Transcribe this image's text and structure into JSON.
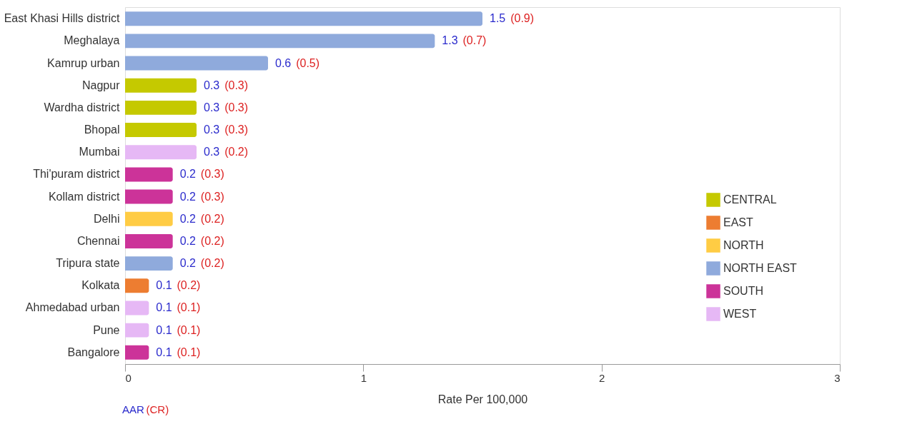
{
  "chart_data": {
    "type": "bar",
    "orientation": "horizontal",
    "categories": [
      "East Khasi Hills district",
      "Meghalaya",
      "Kamrup urban",
      "Nagpur",
      "Wardha district",
      "Bhopal",
      "Mumbai",
      "Thi'puram district",
      "Kollam district",
      "Delhi",
      "Chennai",
      "Tripura state",
      "Kolkata",
      "Ahmedabad urban",
      "Pune",
      "Bangalore"
    ],
    "series": [
      {
        "name": "CENTRAL",
        "color": "#c5c900",
        "values": [
          null,
          null,
          null,
          0.3,
          0.3,
          0.3,
          null,
          null,
          null,
          null,
          null,
          null,
          null,
          null,
          null,
          null
        ]
      },
      {
        "name": "EAST",
        "color": "#ed7d31",
        "values": [
          null,
          null,
          null,
          null,
          null,
          null,
          null,
          null,
          null,
          null,
          null,
          null,
          0.1,
          null,
          null,
          null
        ]
      },
      {
        "name": "NORTH",
        "color": "#ffcc44",
        "values": [
          null,
          null,
          null,
          null,
          null,
          null,
          null,
          null,
          null,
          0.2,
          null,
          null,
          null,
          null,
          null,
          null
        ]
      },
      {
        "name": "NORTH EAST",
        "color": "#8faadc",
        "values": [
          1.5,
          1.3,
          0.6,
          null,
          null,
          null,
          null,
          null,
          null,
          null,
          null,
          0.2,
          null,
          null,
          null,
          null
        ]
      },
      {
        "name": "SOUTH",
        "color": "#cc3399",
        "values": [
          null,
          null,
          null,
          null,
          null,
          null,
          null,
          0.2,
          0.2,
          null,
          0.2,
          null,
          null,
          null,
          null,
          0.1
        ]
      },
      {
        "name": "WEST",
        "color": "#e6b8f5",
        "values": [
          null,
          null,
          null,
          null,
          null,
          null,
          0.3,
          null,
          null,
          null,
          null,
          null,
          null,
          0.1,
          0.1,
          null
        ]
      }
    ],
    "value_labels": [
      "1.5 (0.9)",
      "1.3 (0.7)",
      "0.6 (0.5)",
      "0.3 (0.3)",
      "0.3 (0.3)",
      "0.3 (0.3)",
      "0.3 (0.2)",
      "0.2 (0.3)",
      "0.2 (0.3)",
      "0.2 (0.2)",
      "0.2 (0.2)",
      "0.2 (0.2)",
      "0.1 (0.2)",
      "0.1 (0.1)",
      "0.1 (0.1)",
      "0.1 (0.1)"
    ],
    "xlabel": "Rate Per 100,000",
    "xlim": [
      0,
      3
    ],
    "xticks": [
      0,
      1,
      2,
      3
    ],
    "grid": false,
    "legend": "bottom right",
    "annotations": [
      "AAR (CR)"
    ]
  }
}
